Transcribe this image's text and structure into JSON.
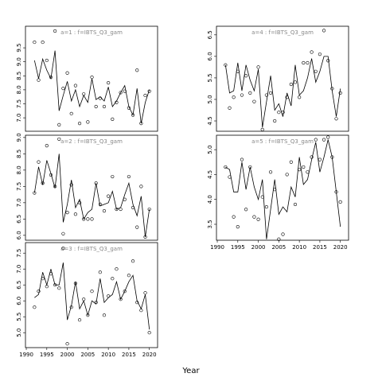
{
  "xlabel": "Year",
  "chart_data": [
    {
      "type": "line",
      "title": "a=1  :  f=IBTS_Q3_gam",
      "x": [
        1992,
        1993,
        1994,
        1995,
        1996,
        1997,
        1998,
        1999,
        2000,
        2001,
        2002,
        2003,
        2004,
        2005,
        2006,
        2007,
        2008,
        2009,
        2010,
        2011,
        2012,
        2013,
        2014,
        2015,
        2016,
        2017,
        2018,
        2019,
        2020
      ],
      "xlim": [
        1989.8,
        2022
      ],
      "ylim": [
        6.52,
        10.27
      ],
      "yticks": [
        {
          "value": 7,
          "label": "7.0"
        },
        7.5,
        {
          "value": 8,
          "label": "8.0"
        },
        8.5,
        {
          "value": 9,
          "label": "9.0"
        },
        9.5
      ],
      "series": [
        {
          "style": "line",
          "color": "#000000",
          "values": [
            9.05,
            8.4,
            9.1,
            8.7,
            8.4,
            9.4,
            7.25,
            7.8,
            8.3,
            7.6,
            8.0,
            7.4,
            7.8,
            7.55,
            8.4,
            7.65,
            7.75,
            7.6,
            8.1,
            7.4,
            7.6,
            7.9,
            8.15,
            7.4,
            7.1,
            8.05,
            6.8,
            7.55,
            8.0
          ]
        },
        {
          "style": "points",
          "color": "#000000",
          "values": [
            9.7,
            8.35,
            9.7,
            9.05,
            8.45,
            10.1,
            6.75,
            8.05,
            8.6,
            7.15,
            8.15,
            6.8,
            7.85,
            6.85,
            8.45,
            7.4,
            7.7,
            7.4,
            8.25,
            6.95,
            7.55,
            7.9,
            7.95,
            7.35,
            7.1,
            8.7,
            6.8,
            7.8,
            7.95
          ]
        }
      ]
    },
    {
      "type": "line",
      "title": "a=2  :  f=IBTS_Q3_gam",
      "x": [
        1992,
        1993,
        1994,
        1995,
        1996,
        1997,
        1998,
        1999,
        2000,
        2001,
        2002,
        2003,
        2004,
        2005,
        2006,
        2007,
        2008,
        2009,
        2010,
        2011,
        2012,
        2013,
        2014,
        2015,
        2016,
        2017,
        2018,
        2019,
        2020
      ],
      "xlim": [
        1989.8,
        2022
      ],
      "ylim": [
        5.85,
        9.07
      ],
      "yticks": [
        {
          "value": 6,
          "label": "6.0"
        },
        6.5,
        {
          "value": 7,
          "label": "7.0"
        },
        7.5,
        {
          "value": 8,
          "label": "8.0"
        },
        8.5,
        {
          "value": 9,
          "label": "9.0"
        }
      ],
      "series": [
        {
          "style": "line",
          "color": "#000000",
          "values": [
            7.3,
            8.1,
            7.55,
            8.3,
            7.9,
            7.45,
            8.5,
            6.4,
            6.95,
            7.7,
            6.85,
            7.1,
            6.5,
            6.7,
            6.8,
            7.6,
            6.9,
            6.95,
            7.0,
            7.35,
            6.8,
            6.85,
            7.25,
            7.6,
            6.95,
            6.6,
            7.2,
            5.95,
            6.8
          ]
        },
        {
          "style": "points",
          "color": "#000000",
          "values": [
            7.3,
            8.25,
            7.6,
            8.75,
            7.85,
            7.5,
            8.95,
            6.05,
            6.7,
            7.55,
            6.65,
            7.0,
            6.5,
            6.5,
            6.5,
            7.6,
            6.95,
            6.75,
            7.2,
            7.8,
            6.8,
            6.8,
            7.1,
            7.8,
            6.85,
            6.25,
            7.5,
            5.95,
            6.8
          ]
        }
      ]
    },
    {
      "type": "line",
      "title": "a=3  :  f=IBTS_Q3_gam",
      "x": [
        1992,
        1993,
        1994,
        1995,
        1996,
        1997,
        1998,
        1999,
        2000,
        2001,
        2002,
        2003,
        2004,
        2005,
        2006,
        2007,
        2008,
        2009,
        2010,
        2011,
        2012,
        2013,
        2014,
        2015,
        2016,
        2017,
        2018,
        2019,
        2020
      ],
      "xlim": [
        1989.8,
        2022
      ],
      "xticks": [
        1990,
        1995,
        2000,
        2005,
        2010,
        2015,
        2020
      ],
      "ylim": [
        4.53,
        7.83
      ],
      "yticks": [
        {
          "value": 5,
          "label": "5.0"
        },
        5.5,
        {
          "value": 6,
          "label": "6.0"
        },
        6.5,
        {
          "value": 7,
          "label": "7.0"
        },
        7.5
      ],
      "series": [
        {
          "style": "line",
          "color": "#000000",
          "values": [
            6.1,
            6.2,
            6.9,
            6.5,
            7.0,
            6.5,
            6.5,
            7.2,
            5.4,
            5.85,
            6.6,
            5.75,
            6.0,
            5.55,
            6.0,
            5.9,
            6.7,
            5.95,
            6.1,
            6.2,
            6.6,
            6.05,
            6.3,
            6.6,
            6.8,
            6.0,
            5.75,
            6.2,
            5.1
          ]
        },
        {
          "style": "points",
          "color": "#000000",
          "values": [
            5.8,
            6.3,
            6.7,
            6.45,
            6.85,
            6.5,
            6.4,
            7.65,
            4.65,
            5.8,
            6.55,
            5.4,
            6.05,
            5.55,
            6.3,
            5.95,
            6.9,
            5.55,
            6.15,
            6.7,
            7.0,
            6.05,
            6.3,
            6.8,
            7.25,
            5.95,
            5.7,
            6.25,
            5.0
          ]
        }
      ]
    },
    {
      "type": "line",
      "title": "a=4  :  f=IBTS_Q3_gam",
      "x": [
        1992,
        1993,
        1994,
        1995,
        1996,
        1997,
        1998,
        1999,
        2000,
        2001,
        2002,
        2003,
        2004,
        2005,
        2006,
        2007,
        2008,
        2009,
        2010,
        2011,
        2012,
        2013,
        2014,
        2015,
        2016,
        2017,
        2018,
        2019,
        2020
      ],
      "xlim": [
        1989.8,
        2022
      ],
      "ylim": [
        4.26,
        6.7
      ],
      "yticks": [
        4.5,
        {
          "value": 5,
          "label": "5.0"
        },
        5.5,
        {
          "value": 6,
          "label": "6.0"
        },
        6.5
      ],
      "series": [
        {
          "style": "line",
          "color": "#000000",
          "values": [
            5.8,
            5.15,
            5.2,
            5.85,
            5.2,
            5.8,
            5.45,
            5.2,
            5.7,
            4.35,
            4.95,
            5.55,
            4.75,
            4.9,
            4.6,
            5.15,
            4.85,
            5.8,
            5.1,
            5.2,
            5.5,
            5.95,
            5.4,
            5.65,
            6.0,
            6.0,
            5.2,
            4.6,
            5.25
          ]
        },
        {
          "style": "points",
          "color": "#000000",
          "values": [
            5.8,
            4.8,
            5.05,
            5.65,
            5.1,
            5.55,
            5.15,
            4.95,
            5.75,
            4.3,
            5.1,
            5.15,
            4.5,
            4.7,
            4.7,
            5.05,
            5.35,
            5.4,
            5.05,
            5.85,
            5.85,
            6.1,
            5.65,
            6.05,
            6.6,
            5.9,
            5.25,
            4.55,
            5.15
          ]
        }
      ]
    },
    {
      "type": "line",
      "title": "a=5  :  f=IBTS_Q3_gam",
      "x": [
        1992,
        1993,
        1994,
        1995,
        1996,
        1997,
        1998,
        1999,
        2000,
        2001,
        2002,
        2003,
        2004,
        2005,
        2006,
        2007,
        2008,
        2009,
        2010,
        2011,
        2012,
        2013,
        2014,
        2015,
        2016,
        2017,
        2018,
        2019,
        2020
      ],
      "xlim": [
        1989.8,
        2022
      ],
      "xticks": [
        1990,
        1995,
        2000,
        2005,
        2010,
        2015,
        2020
      ],
      "ylim": [
        3.18,
        5.29
      ],
      "yticks": [
        3.5,
        {
          "value": 4,
          "label": "4.0"
        },
        4.5,
        {
          "value": 5,
          "label": "5.0"
        }
      ],
      "series": [
        {
          "style": "line",
          "color": "#000000",
          "values": [
            4.65,
            4.6,
            4.15,
            4.15,
            4.75,
            4.2,
            4.65,
            4.25,
            4.0,
            4.4,
            3.2,
            3.8,
            4.4,
            3.7,
            3.85,
            3.75,
            4.25,
            4.05,
            4.85,
            4.3,
            4.4,
            4.8,
            5.15,
            4.55,
            4.85,
            5.2,
            4.85,
            4.15,
            3.45
          ]
        },
        {
          "style": "points",
          "color": "#000000",
          "values": [
            4.65,
            4.45,
            3.65,
            3.45,
            4.8,
            3.8,
            4.65,
            3.65,
            3.6,
            4.05,
            3.85,
            4.55,
            4.2,
            3.2,
            3.3,
            4.5,
            4.75,
            3.9,
            4.6,
            4.65,
            4.55,
            4.85,
            5.2,
            4.8,
            5.2,
            5.25,
            4.85,
            4.15,
            3.95
          ]
        }
      ]
    }
  ]
}
